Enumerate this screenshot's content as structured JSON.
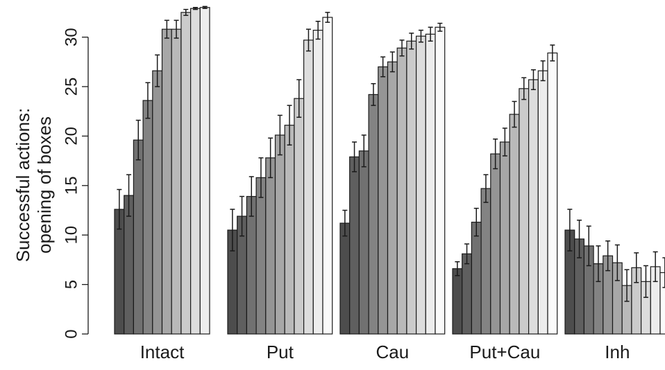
{
  "chart_data": {
    "type": "bar",
    "ylabel_lines": [
      "Successful actions:",
      "opening of boxes"
    ],
    "xlabel": "",
    "ylim": [
      0,
      31
    ],
    "yticks": [
      0,
      5,
      10,
      15,
      20,
      25,
      30
    ],
    "grid": false,
    "legend": "none",
    "error_bars": true,
    "categories": [
      "Intact",
      "Put",
      "Cau",
      "Put+Cau",
      "Inh"
    ],
    "groups": [
      {
        "name": "Intact",
        "values": [
          12.6,
          14.0,
          19.6,
          23.6,
          26.6,
          30.8,
          30.8,
          32.5,
          32.9,
          33.0
        ],
        "errors": [
          2.0,
          2.1,
          2.0,
          1.8,
          1.6,
          0.9,
          0.9,
          0.3,
          0.1,
          0.1
        ]
      },
      {
        "name": "Put",
        "values": [
          10.5,
          11.9,
          13.9,
          15.8,
          17.8,
          20.1,
          21.1,
          23.8,
          29.7,
          30.7,
          32.0
        ],
        "errors": [
          2.1,
          2.0,
          2.0,
          2.0,
          2.0,
          2.0,
          2.0,
          1.9,
          1.1,
          0.9,
          0.5
        ]
      },
      {
        "name": "Cau",
        "values": [
          11.2,
          17.9,
          18.5,
          24.2,
          27.0,
          27.5,
          28.9,
          29.6,
          30.1,
          30.3,
          31.0
        ],
        "errors": [
          1.3,
          1.5,
          1.6,
          1.1,
          1.0,
          1.0,
          0.8,
          0.8,
          0.6,
          0.7,
          0.4
        ]
      },
      {
        "name": "Put+Cau",
        "values": [
          6.6,
          8.1,
          11.3,
          14.7,
          18.2,
          19.4,
          22.2,
          24.8,
          25.7,
          26.6,
          28.4
        ],
        "errors": [
          0.7,
          1.0,
          1.4,
          1.4,
          1.5,
          1.4,
          1.3,
          1.1,
          1.0,
          1.0,
          0.8
        ]
      },
      {
        "name": "Inh",
        "values": [
          10.5,
          9.6,
          8.9,
          7.1,
          7.9,
          7.2,
          4.9,
          6.7,
          5.3,
          6.8,
          6.2
        ],
        "errors": [
          2.1,
          1.9,
          2.0,
          1.8,
          1.5,
          1.8,
          1.6,
          1.5,
          1.6,
          1.5,
          1.5
        ]
      }
    ],
    "bar_shades": [
      "#4d4d4d",
      "#5f5f5f",
      "#717171",
      "#838383",
      "#959595",
      "#a7a7a7",
      "#b9b9b9",
      "#cbcbcb",
      "#dddddd",
      "#ededed",
      "#fafafa"
    ]
  }
}
